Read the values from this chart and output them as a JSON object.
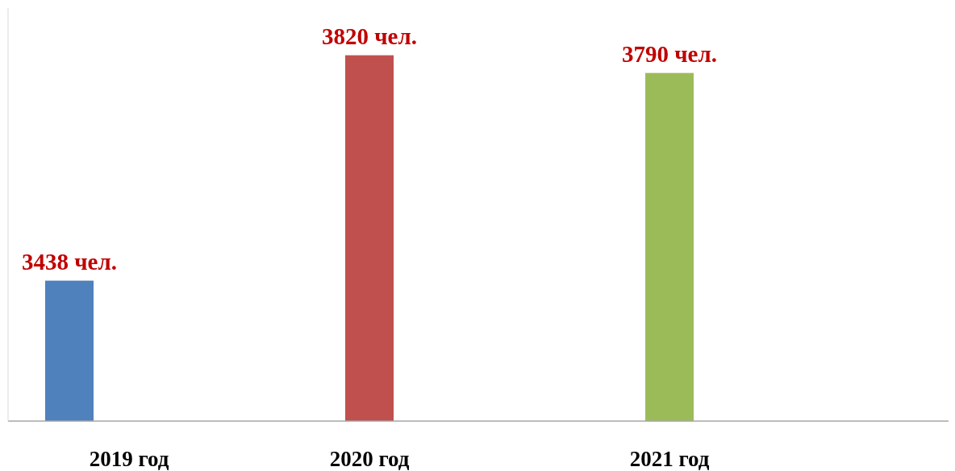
{
  "chart_data": {
    "type": "bar",
    "categories": [
      "2019 год",
      "2020 год",
      "2021 год"
    ],
    "values": [
      3438,
      3820,
      3790
    ],
    "colors": [
      "#4f81bd",
      "#c0504d",
      "#9bbb59"
    ],
    "value_labels": [
      "3438 чел.",
      "3820 чел.",
      "3790 чел."
    ],
    "ylim": [
      3200,
      3900
    ],
    "tick_labels": "x"
  }
}
